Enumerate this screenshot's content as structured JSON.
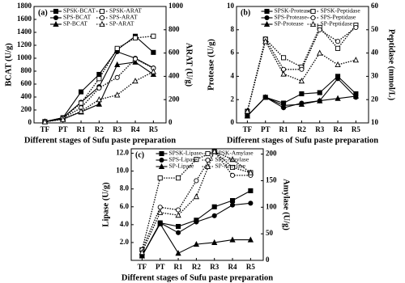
{
  "chart_data": [
    {
      "type": "line",
      "panel_label": "(a)",
      "x_label": "Different stages of Sufu paste preparation",
      "y_label": "BCAT (U/g)",
      "y2_label": "ARAT (U/g)",
      "categories": [
        "TF",
        "PT",
        "R1",
        "R2",
        "R3",
        "R4",
        "R5"
      ],
      "ylim": [
        0,
        1800
      ],
      "yticks": [
        0,
        200,
        400,
        600,
        800,
        1000,
        1200,
        1400,
        1600,
        1800
      ],
      "y2lim": [
        0,
        1000
      ],
      "y2ticks": [
        0,
        200,
        400,
        600,
        800,
        1000
      ],
      "legend": "upper left",
      "series": [
        {
          "name": "SPSK-BCAT",
          "color": "#000000",
          "marker": "square",
          "filled": true,
          "dashed": false,
          "values": [
            20,
            80,
            480,
            750,
            1130,
            1340,
            1090
          ]
        },
        {
          "name": "SPS-BCAT",
          "color": "#000000",
          "marker": "circle",
          "filled": true,
          "dashed": false,
          "values": [
            20,
            80,
            320,
            560,
            1100,
            1000,
            850
          ]
        },
        {
          "name": "SP-BCAT",
          "color": "#000000",
          "marker": "triangle",
          "filled": true,
          "dashed": false,
          "values": [
            20,
            60,
            170,
            290,
            900,
            940,
            750
          ]
        },
        {
          "name": "SPSK-ARAT",
          "color": "#000000",
          "marker": "square",
          "filled": false,
          "dashed": true,
          "axis": "y2",
          "values": [
            10,
            40,
            170,
            380,
            640,
            730,
            745
          ]
        },
        {
          "name": "SPS-ARAT",
          "color": "#000000",
          "marker": "circle",
          "filled": false,
          "dashed": true,
          "axis": "y2",
          "values": [
            10,
            40,
            130,
            300,
            390,
            550,
            470
          ]
        },
        {
          "name": "SP-ARAT",
          "color": "#000000",
          "marker": "triangle",
          "filled": false,
          "dashed": true,
          "axis": "y2",
          "values": [
            10,
            30,
            100,
            200,
            240,
            360,
            440
          ]
        }
      ]
    },
    {
      "type": "line",
      "panel_label": "(b)",
      "x_label": "Different stages of Sufu paste preparation",
      "y_label": "Protease (U/g)",
      "y2_label": "Peptidase (mmol/L)",
      "categories": [
        "TF",
        "PT",
        "R1",
        "R2",
        "R3",
        "R4",
        "R5"
      ],
      "ylim": [
        0,
        10
      ],
      "yticks": [
        0,
        2,
        4,
        6,
        8,
        10
      ],
      "y2lim": [
        10,
        60
      ],
      "y2ticks": [
        10,
        20,
        30,
        40,
        50,
        60
      ],
      "legend": "upper center",
      "series": [
        {
          "name": "SPSK-Protease",
          "color": "#000000",
          "marker": "square",
          "filled": true,
          "dashed": false,
          "values": [
            0.6,
            2.2,
            1.7,
            2.5,
            2.6,
            4.0,
            2.5
          ]
        },
        {
          "name": "SPSK-Peptidase",
          "color": "#000000",
          "marker": "square",
          "filled": false,
          "dashed": true,
          "axis": "y2",
          "values": [
            15,
            46,
            38,
            34,
            51,
            42,
            52
          ]
        },
        {
          "name": "SPS-Protease",
          "color": "#000000",
          "marker": "circle",
          "filled": true,
          "dashed": false,
          "values": [
            0.6,
            2.2,
            1.3,
            1.7,
            1.9,
            3.8,
            2.2
          ]
        },
        {
          "name": "SPS-Peptidase",
          "color": "#000000",
          "marker": "circle",
          "filled": false,
          "dashed": true,
          "axis": "y2",
          "values": [
            15,
            46,
            33,
            33,
            50,
            45,
            51
          ]
        },
        {
          "name": "SP-Protease",
          "color": "#000000",
          "marker": "triangle",
          "filled": true,
          "dashed": false,
          "values": [
            0.6,
            2.2,
            1.5,
            1.6,
            1.9,
            2.1,
            2.3
          ]
        },
        {
          "name": "SP-Peptidase",
          "color": "#000000",
          "marker": "triangle",
          "filled": false,
          "dashed": true,
          "axis": "y2",
          "values": [
            15,
            45,
            31,
            28,
            40,
            35,
            37
          ]
        }
      ]
    },
    {
      "type": "line",
      "panel_label": "(c)",
      "x_label": "Different stages of Sufu paste preparation",
      "y_label": "Lipase (U/g)",
      "y2_label": "Amylase (U/g)",
      "categories": [
        "TF",
        "PT",
        "R1",
        "R2",
        "R3",
        "R4",
        "R5"
      ],
      "ylim": [
        0,
        12.5
      ],
      "yticks": [
        {
          "value": 2,
          "label": "2.0"
        },
        {
          "value": 4,
          "label": "4.0"
        },
        {
          "value": 6,
          "label": "6.0"
        },
        {
          "value": 8,
          "label": "8.0"
        },
        {
          "value": 10,
          "label": "10.0"
        },
        {
          "value": 12,
          "label": "12.0"
        }
      ],
      "y2lim": [
        0,
        210
      ],
      "y2ticks": [
        0,
        50,
        100,
        150,
        200
      ],
      "legend": "upper center",
      "series": [
        {
          "name": "SPSK-Lipase",
          "color": "#000000",
          "marker": "square",
          "filled": true,
          "dashed": false,
          "values": [
            0.5,
            4.2,
            3.8,
            4.5,
            6.0,
            6.7,
            7.8
          ]
        },
        {
          "name": "SPSK-Amylase",
          "color": "#000000",
          "marker": "square",
          "filled": false,
          "dashed": true,
          "axis": "y2",
          "values": [
            20,
            155,
            155,
            190,
            205,
            175,
            165
          ]
        },
        {
          "name": "SPS-Lipase",
          "color": "#000000",
          "marker": "circle",
          "filled": true,
          "dashed": false,
          "values": [
            0.5,
            4.2,
            3.1,
            4.3,
            5.0,
            6.2,
            6.4
          ]
        },
        {
          "name": "SPS-Amylase",
          "color": "#000000",
          "marker": "circle",
          "filled": false,
          "dashed": true,
          "axis": "y2",
          "values": [
            20,
            100,
            95,
            150,
            205,
            160,
            160
          ]
        },
        {
          "name": "SP-Lipase",
          "color": "#000000",
          "marker": "triangle",
          "filled": true,
          "dashed": false,
          "values": [
            0.5,
            4.1,
            0.8,
            1.8,
            2.0,
            2.3,
            2.3
          ]
        },
        {
          "name": "SP-Amylase",
          "color": "#000000",
          "marker": "triangle",
          "filled": false,
          "dashed": true,
          "axis": "y2",
          "values": [
            15,
            90,
            85,
            120,
            205,
            190,
            165
          ]
        }
      ]
    }
  ]
}
